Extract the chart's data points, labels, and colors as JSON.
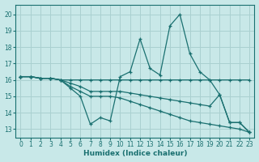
{
  "xlabel": "Humidex (Indice chaleur)",
  "bg_color": "#c8e8e8",
  "grid_color": "#aad0d0",
  "line_color": "#1a7070",
  "xlim": [
    -0.5,
    23.5
  ],
  "ylim": [
    12.5,
    20.6
  ],
  "yticks": [
    13,
    14,
    15,
    16,
    17,
    18,
    19,
    20
  ],
  "xticks": [
    0,
    1,
    2,
    3,
    4,
    5,
    6,
    7,
    8,
    9,
    10,
    11,
    12,
    13,
    14,
    15,
    16,
    17,
    18,
    19,
    20,
    21,
    22,
    23
  ],
  "series_jagged": [
    16.2,
    16.2,
    16.1,
    16.1,
    16.0,
    15.5,
    15.0,
    13.3,
    13.7,
    13.5,
    16.2,
    16.5,
    18.5,
    16.7,
    16.3,
    19.3,
    20.0,
    17.6,
    16.5,
    16.0,
    15.1,
    13.4,
    13.4,
    12.8
  ],
  "series_flat": [
    16.2,
    16.2,
    16.1,
    16.1,
    16.0,
    16.0,
    16.0,
    16.0,
    16.0,
    16.0,
    16.0,
    16.0,
    16.0,
    16.0,
    16.0,
    16.0,
    16.0,
    16.0,
    16.0,
    16.0,
    16.0,
    16.0,
    16.0,
    16.0
  ],
  "series_decline1": [
    16.2,
    16.2,
    16.1,
    16.1,
    16.0,
    15.8,
    15.6,
    15.3,
    15.3,
    15.3,
    15.3,
    15.2,
    15.1,
    15.0,
    14.9,
    14.8,
    14.7,
    14.6,
    14.5,
    14.4,
    15.1,
    13.4,
    13.4,
    12.8
  ],
  "series_decline2": [
    16.2,
    16.2,
    16.1,
    16.1,
    16.0,
    15.6,
    15.3,
    15.0,
    15.0,
    15.0,
    14.9,
    14.7,
    14.5,
    14.3,
    14.1,
    13.9,
    13.7,
    13.5,
    13.4,
    13.3,
    13.2,
    13.1,
    13.0,
    12.8
  ]
}
